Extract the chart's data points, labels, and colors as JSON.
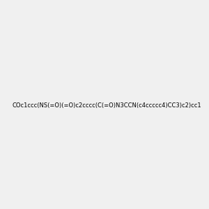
{
  "smiles": "COc1ccc(NS(=O)(=O)c2cccc(C(=O)N3CCN(c4ccccc4)CC3)c2)cc1",
  "image_size": 300,
  "background_color": "#f0f0f0",
  "title": ""
}
